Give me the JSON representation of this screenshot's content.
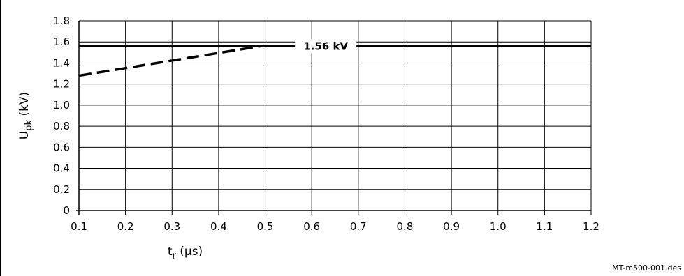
{
  "chart_data": {
    "type": "line",
    "xlabel_main": "t",
    "xlabel_sub": "r",
    "xlabel_unit": " (μs)",
    "ylabel_main": "U",
    "ylabel_sub": "pk",
    "ylabel_unit": " (kV)",
    "xlim": [
      0.1,
      1.2
    ],
    "ylim": [
      0,
      1.8
    ],
    "x_ticks": [
      "0.1",
      "0.2",
      "0.3",
      "0.4",
      "0.5",
      "0.6",
      "0.7",
      "0.8",
      "0.9",
      "1.0",
      "1.1",
      "1.2"
    ],
    "y_ticks": [
      "0",
      "0.2",
      "0.4",
      "0.6",
      "0.8",
      "1.0",
      "1.2",
      "1.4",
      "1.6",
      "1.8"
    ],
    "grid": true,
    "series": [
      {
        "style": "solid",
        "x": [
          0.1,
          1.2
        ],
        "y": [
          1.56,
          1.56
        ]
      },
      {
        "style": "dashed",
        "x": [
          0.1,
          0.49
        ],
        "y": [
          1.28,
          1.56
        ]
      }
    ],
    "annotations": [
      {
        "text": "1.56 kV",
        "x": 0.63,
        "y": 1.56
      }
    ]
  },
  "file_ref": "MT-m500-001.des"
}
